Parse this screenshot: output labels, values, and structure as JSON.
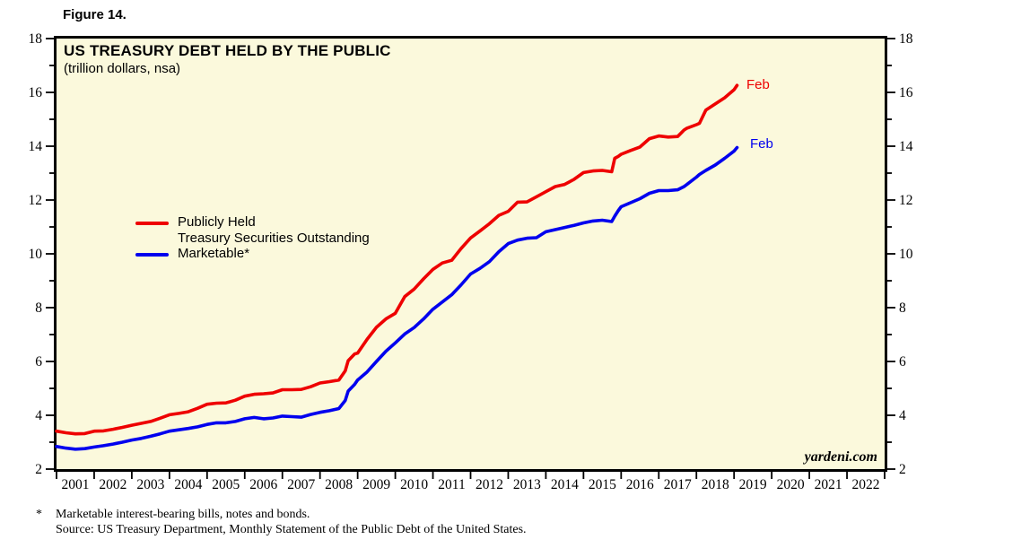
{
  "figure": {
    "label": "Figure 14."
  },
  "chart": {
    "title": "US TREASURY DEBT HELD BY THE PUBLIC",
    "subtitle": "(trillion dollars, nsa)"
  },
  "legend": {
    "entries": [
      {
        "label": "Publicly Held",
        "label_line2": "Treasury Securities Outstanding",
        "color": "#EE0000"
      },
      {
        "label": "Marketable*",
        "label_line2": "",
        "color": "#0000EE"
      }
    ]
  },
  "end_labels": {
    "publicly_held": "Feb",
    "marketable": "Feb"
  },
  "watermark": "yardeni.com",
  "footnotes": {
    "symbol": "*",
    "line1": "Marketable interest-bearing bills, notes and bonds.",
    "line2": "Source: US Treasury Department, Monthly Statement of the Public Debt of the United States."
  },
  "colors": {
    "plot_bg": "#FBF9DC",
    "axis": "#000000",
    "publicly_held": "#EE0000",
    "marketable": "#0000EE"
  },
  "chart_data": {
    "type": "line",
    "title": "US TREASURY DEBT HELD BY THE PUBLIC",
    "subtitle": "(trillion dollars, nsa)",
    "xlabel": "",
    "ylabel": "trillion dollars",
    "xlim": [
      2001,
      2023
    ],
    "ylim": [
      2,
      18
    ],
    "grid": false,
    "legend_position": "left-middle",
    "x_label_years": [
      2001,
      2002,
      2003,
      2004,
      2005,
      2006,
      2007,
      2008,
      2009,
      2010,
      2011,
      2012,
      2013,
      2014,
      2015,
      2016,
      2017,
      2018,
      2019,
      2020,
      2021,
      2022
    ],
    "y_ticks_major": [
      2,
      4,
      6,
      8,
      10,
      12,
      14,
      16,
      18
    ],
    "y_ticks_minor": [
      3,
      5,
      7,
      9,
      11,
      13,
      15,
      17
    ],
    "x": [
      2001.0,
      2001.25,
      2001.5,
      2001.75,
      2002.0,
      2002.25,
      2002.5,
      2002.75,
      2003.0,
      2003.25,
      2003.5,
      2003.75,
      2004.0,
      2004.25,
      2004.5,
      2004.75,
      2005.0,
      2005.25,
      2005.5,
      2005.75,
      2006.0,
      2006.25,
      2006.5,
      2006.75,
      2007.0,
      2007.25,
      2007.5,
      2007.75,
      2008.0,
      2008.25,
      2008.5,
      2008.67,
      2008.75,
      2008.92,
      2009.0,
      2009.25,
      2009.5,
      2009.75,
      2010.0,
      2010.25,
      2010.5,
      2010.75,
      2011.0,
      2011.25,
      2011.5,
      2011.75,
      2012.0,
      2012.25,
      2012.5,
      2012.75,
      2013.0,
      2013.25,
      2013.5,
      2013.75,
      2014.0,
      2014.25,
      2014.5,
      2014.75,
      2015.0,
      2015.25,
      2015.5,
      2015.75,
      2015.83,
      2015.92,
      2016.0,
      2016.25,
      2016.5,
      2016.75,
      2017.0,
      2017.25,
      2017.5,
      2017.67,
      2017.75,
      2018.0,
      2018.08,
      2018.25,
      2018.5,
      2018.75,
      2019.0,
      2019.08
    ],
    "series": [
      {
        "name": "Publicly Held Treasury Securities Outstanding",
        "color": "#EE0000",
        "end_label": "Feb",
        "last_point": {
          "date": "Feb 2019",
          "value": 16.26
        },
        "values": [
          3.41,
          3.35,
          3.31,
          3.32,
          3.41,
          3.42,
          3.48,
          3.55,
          3.63,
          3.7,
          3.77,
          3.89,
          4.02,
          4.07,
          4.13,
          4.26,
          4.41,
          4.45,
          4.46,
          4.56,
          4.71,
          4.78,
          4.8,
          4.83,
          4.95,
          4.95,
          4.96,
          5.06,
          5.2,
          5.25,
          5.31,
          5.65,
          6.03,
          6.28,
          6.31,
          6.82,
          7.27,
          7.58,
          7.79,
          8.41,
          8.69,
          9.07,
          9.42,
          9.66,
          9.76,
          10.2,
          10.59,
          10.85,
          11.12,
          11.43,
          11.58,
          11.92,
          11.93,
          12.12,
          12.31,
          12.5,
          12.58,
          12.77,
          13.02,
          13.08,
          13.1,
          13.05,
          13.55,
          13.62,
          13.7,
          13.84,
          13.97,
          14.28,
          14.38,
          14.34,
          14.36,
          14.6,
          14.67,
          14.8,
          14.85,
          15.34,
          15.57,
          15.8,
          16.1,
          16.26
        ]
      },
      {
        "name": "Marketable*",
        "color": "#0000EE",
        "end_label": "Feb",
        "last_point": {
          "date": "Feb 2019",
          "value": 13.95
        },
        "values": [
          2.84,
          2.78,
          2.74,
          2.76,
          2.82,
          2.87,
          2.93,
          3.0,
          3.08,
          3.14,
          3.22,
          3.31,
          3.41,
          3.46,
          3.51,
          3.57,
          3.66,
          3.72,
          3.72,
          3.77,
          3.87,
          3.92,
          3.87,
          3.9,
          3.97,
          3.95,
          3.93,
          4.03,
          4.11,
          4.17,
          4.25,
          4.55,
          4.9,
          5.15,
          5.31,
          5.61,
          6.0,
          6.38,
          6.69,
          7.02,
          7.26,
          7.58,
          7.94,
          8.21,
          8.48,
          8.85,
          9.25,
          9.46,
          9.71,
          10.08,
          10.38,
          10.51,
          10.58,
          10.6,
          10.82,
          10.9,
          10.98,
          11.06,
          11.15,
          11.22,
          11.25,
          11.2,
          11.4,
          11.6,
          11.75,
          11.9,
          12.05,
          12.25,
          12.35,
          12.35,
          12.38,
          12.5,
          12.58,
          12.85,
          12.95,
          13.1,
          13.3,
          13.55,
          13.82,
          13.95
        ]
      }
    ]
  }
}
